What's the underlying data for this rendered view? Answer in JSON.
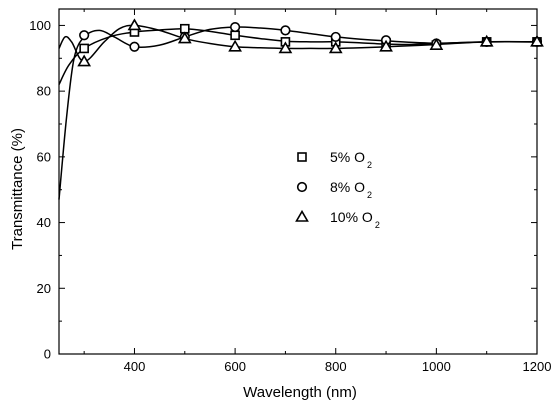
{
  "chart_data": {
    "type": "line",
    "title": "",
    "xlabel": "Wavelength (nm)",
    "ylabel": "Transmittance (%)",
    "xlim": [
      250,
      1200
    ],
    "ylim": [
      0,
      105
    ],
    "x_ticks": [
      400,
      600,
      800,
      1000,
      1200
    ],
    "x_tick_labels": [
      "400",
      "600",
      "800",
      "1000",
      "1200"
    ],
    "y_ticks": [
      0,
      20,
      40,
      60,
      80,
      100
    ],
    "y_tick_labels": [
      "0",
      "20",
      "40",
      "60",
      "80",
      "100"
    ],
    "grid": false,
    "legend_position": "center-right",
    "series": [
      {
        "name": "5% O2",
        "label_main": "5% O",
        "label_sub": "2",
        "marker": "square",
        "markers": {
          "x": [
            300,
            400,
            500,
            600,
            700,
            800,
            900,
            1000,
            1100,
            1200
          ],
          "y": [
            93,
            98,
            99,
            97,
            95,
            95,
            94,
            94,
            95,
            95
          ]
        },
        "curve": {
          "x": [
            250,
            270,
            300,
            350,
            400,
            450,
            500,
            550,
            600,
            650,
            700,
            750,
            800,
            850,
            900,
            950,
            1000,
            1100,
            1200
          ],
          "y": [
            82,
            88,
            93,
            96.5,
            98,
            98.6,
            99,
            98.2,
            97,
            96,
            95.2,
            95,
            95,
            94.7,
            94.3,
            94.2,
            94.5,
            95,
            95
          ]
        }
      },
      {
        "name": "8% O2",
        "label_main": "8% O",
        "label_sub": "2",
        "marker": "circle",
        "markers": {
          "x": [
            300,
            400,
            500,
            600,
            700,
            800,
            900,
            1000,
            1100,
            1200
          ],
          "y": [
            97,
            93.5,
            96.5,
            99.5,
            98.5,
            96.5,
            95.5,
            94.5,
            95,
            95
          ]
        },
        "curve": {
          "x": [
            250,
            265,
            280,
            300,
            330,
            360,
            400,
            450,
            500,
            550,
            600,
            650,
            700,
            750,
            800,
            850,
            900,
            1000,
            1100,
            1200
          ],
          "y": [
            47,
            72,
            90,
            96.5,
            98.5,
            96.5,
            93.5,
            94,
            96.5,
            98.8,
            99.5,
            99.2,
            98.5,
            97.5,
            96.5,
            95.8,
            95.3,
            94.6,
            95,
            95
          ]
        }
      },
      {
        "name": "10% O2",
        "label_main": "10% O",
        "label_sub": "2",
        "marker": "triangle",
        "markers": {
          "x": [
            300,
            400,
            500,
            600,
            700,
            800,
            900,
            1000,
            1100,
            1200
          ],
          "y": [
            89,
            100,
            96,
            93.5,
            93,
            93,
            93.5,
            94,
            95,
            95
          ]
        },
        "curve": {
          "x": [
            250,
            262,
            275,
            300,
            340,
            370,
            400,
            450,
            500,
            550,
            600,
            650,
            700,
            750,
            800,
            850,
            900,
            1000,
            1100,
            1200
          ],
          "y": [
            93,
            96.5,
            95,
            89,
            95,
            99,
            100,
            98.5,
            96,
            94.5,
            93.5,
            93.2,
            93,
            93,
            93,
            93.2,
            93.5,
            94.2,
            95,
            95
          ]
        }
      }
    ]
  }
}
